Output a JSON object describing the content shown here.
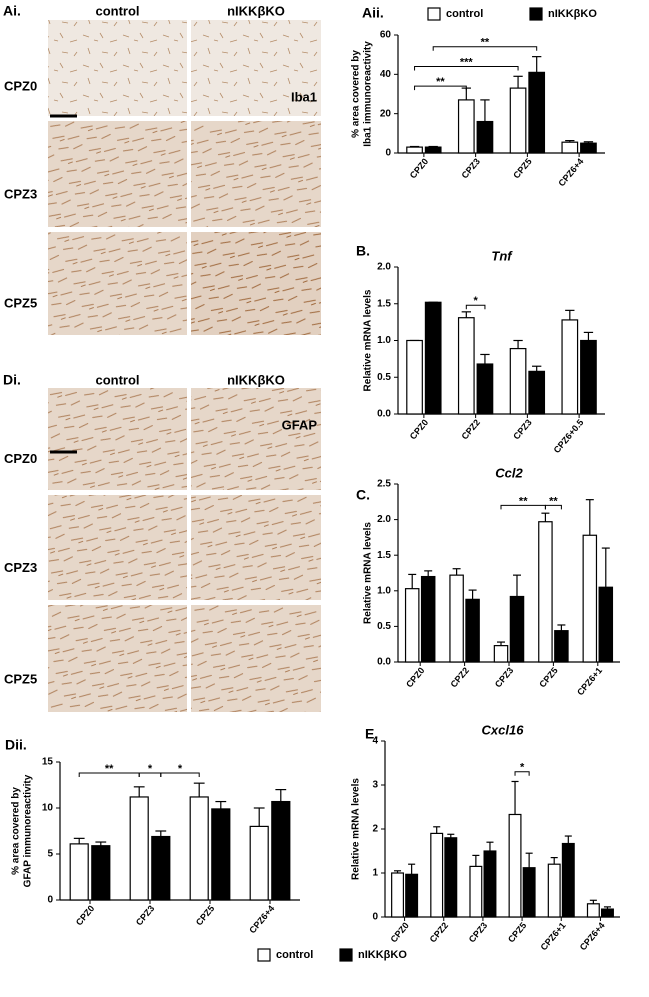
{
  "micrographs": [
    {
      "label": "Ai.",
      "columns": [
        "control",
        "nIKKβKO"
      ],
      "rows": [
        "CPZ0",
        "CPZ3",
        "CPZ5"
      ],
      "stain": "Iba1"
    },
    {
      "label": "Di.",
      "columns": [
        "control",
        "nIKKβKO"
      ],
      "rows": [
        "CPZ0",
        "CPZ3",
        "CPZ5"
      ],
      "stain": "GFAP"
    }
  ],
  "chart_data": [
    {
      "type": "bar",
      "panel": "Aii.",
      "y_label": [
        "% area covered by",
        "Iba1 immunoreactivity"
      ],
      "categories": [
        "CPZ0",
        "CPZ3",
        "CPZ5",
        "CPZ6+4"
      ],
      "series": [
        {
          "name": "control",
          "color": "#ffffff",
          "values": [
            3,
            27,
            33,
            5.5
          ],
          "errors": [
            0.3,
            6,
            6,
            0.8
          ]
        },
        {
          "name": "nIKKβKO",
          "color": "#000000",
          "values": [
            3,
            16,
            41,
            5
          ],
          "errors": [
            0.3,
            11,
            8,
            0.7
          ]
        }
      ],
      "ylim": [
        0,
        60
      ],
      "yticks": [
        0,
        20,
        40,
        60
      ],
      "legend": "top",
      "annotations": [
        {
          "label": "**",
          "from": [
            0,
            0
          ],
          "to": [
            1,
            0
          ],
          "y": 34
        },
        {
          "label": "***",
          "from": [
            0,
            0
          ],
          "to": [
            2,
            0
          ],
          "y": 44
        },
        {
          "label": "**",
          "from": [
            0,
            1
          ],
          "to": [
            2,
            1
          ],
          "y": 54
        }
      ]
    },
    {
      "type": "bar",
      "panel": "B.",
      "title": "Tnf",
      "y_label": "Relative mRNA levels",
      "categories": [
        "CPZ0",
        "CPZ2",
        "CPZ3",
        "CPZ6+0.5"
      ],
      "series": [
        {
          "name": "control",
          "color": "#ffffff",
          "values": [
            1.0,
            1.31,
            0.89,
            1.28
          ],
          "errors": [
            0,
            0.08,
            0.11,
            0.13
          ]
        },
        {
          "name": "nIKKβKO",
          "color": "#000000",
          "values": [
            1.52,
            0.68,
            0.58,
            1.0
          ],
          "errors": [
            0,
            0.13,
            0.07,
            0.11
          ]
        }
      ],
      "ylim": [
        0,
        2.0
      ],
      "yticks": [
        {
          "value": 0,
          "label": "0.0"
        },
        {
          "value": 0.5,
          "label": "0.5"
        },
        {
          "value": 1,
          "label": "1.0"
        },
        {
          "value": 1.5,
          "label": "1.5"
        },
        {
          "value": 2,
          "label": "2.0"
        }
      ],
      "annotations": [
        {
          "label": "*",
          "from": [
            1,
            0
          ],
          "to": [
            1,
            1
          ],
          "y": 1.48
        }
      ]
    },
    {
      "type": "bar",
      "panel": "C.",
      "title": "Ccl2",
      "y_label": "Relative mRNA levels",
      "categories": [
        "CPZ0",
        "CPZ2",
        "CPZ3",
        "CPZ5",
        "CPZ6+1"
      ],
      "series": [
        {
          "name": "control",
          "color": "#ffffff",
          "values": [
            1.03,
            1.22,
            0.23,
            1.97,
            1.78
          ],
          "errors": [
            0.2,
            0.09,
            0.05,
            0.12,
            0.5
          ]
        },
        {
          "name": "nIKKβKO",
          "color": "#000000",
          "values": [
            1.2,
            0.88,
            0.92,
            0.44,
            1.05
          ],
          "errors": [
            0.08,
            0.13,
            0.3,
            0.08,
            0.55
          ]
        }
      ],
      "ylim": [
        0,
        2.5
      ],
      "yticks": [
        {
          "value": 0,
          "label": "0.0"
        },
        {
          "value": 0.5,
          "label": "0.5"
        },
        {
          "value": 1,
          "label": "1.0"
        },
        {
          "value": 1.5,
          "label": "1.5"
        },
        {
          "value": 2,
          "label": "2.0"
        },
        {
          "value": 2.5,
          "label": "2.5"
        }
      ],
      "annotations": [
        {
          "label": "**",
          "from": [
            2,
            0
          ],
          "to": [
            3,
            0
          ],
          "y": 2.2
        },
        {
          "label": "**",
          "from": [
            3,
            0
          ],
          "to": [
            3,
            1
          ],
          "y": 2.2
        }
      ]
    },
    {
      "type": "bar",
      "panel": "Dii.",
      "y_label": [
        "% area covered by",
        "GFAP immunoreactivity"
      ],
      "categories": [
        "CPZ0",
        "CPZ3",
        "CPZ5",
        "CPZ6+4"
      ],
      "series": [
        {
          "name": "control",
          "color": "#ffffff",
          "values": [
            6.1,
            11.2,
            11.2,
            8.0
          ],
          "errors": [
            0.6,
            1.1,
            1.5,
            2.0
          ]
        },
        {
          "name": "nIKKβKO",
          "color": "#000000",
          "values": [
            5.9,
            6.9,
            9.9,
            10.7
          ],
          "errors": [
            0.4,
            0.6,
            0.8,
            1.3
          ]
        }
      ],
      "ylim": [
        0,
        15
      ],
      "yticks": [
        0,
        5,
        10,
        15
      ],
      "annotations": [
        {
          "label": "**",
          "from": [
            0,
            0
          ],
          "to": [
            1,
            0
          ],
          "y": 13.8
        },
        {
          "label": "*",
          "from": [
            1,
            0
          ],
          "to": [
            1,
            1
          ],
          "y": 13.8
        },
        {
          "label": "*",
          "from": [
            1,
            1
          ],
          "to": [
            2,
            0
          ],
          "y": 13.8
        }
      ]
    },
    {
      "type": "bar",
      "panel": "E.",
      "title": "Cxcl16",
      "y_label": "Relative mRNA levels",
      "categories": [
        "CPZ0",
        "CPZ2",
        "CPZ3",
        "CPZ5",
        "CPZ6+1",
        "CPZ6+4"
      ],
      "series": [
        {
          "name": "control",
          "color": "#ffffff",
          "values": [
            1.0,
            1.9,
            1.15,
            2.33,
            1.2,
            0.3
          ],
          "errors": [
            0.05,
            0.15,
            0.25,
            0.75,
            0.15,
            0.08
          ]
        },
        {
          "name": "nIKKβKO",
          "color": "#000000",
          "values": [
            0.97,
            1.8,
            1.5,
            1.12,
            1.67,
            0.18
          ],
          "errors": [
            0.23,
            0.08,
            0.2,
            0.33,
            0.17,
            0.05
          ]
        }
      ],
      "ylim": [
        0,
        4
      ],
      "yticks": [
        0,
        1,
        2,
        3,
        4
      ],
      "legend": "bottom",
      "annotations": [
        {
          "label": "*",
          "from": [
            3,
            0
          ],
          "to": [
            3,
            1
          ],
          "y": 3.3
        }
      ]
    }
  ]
}
